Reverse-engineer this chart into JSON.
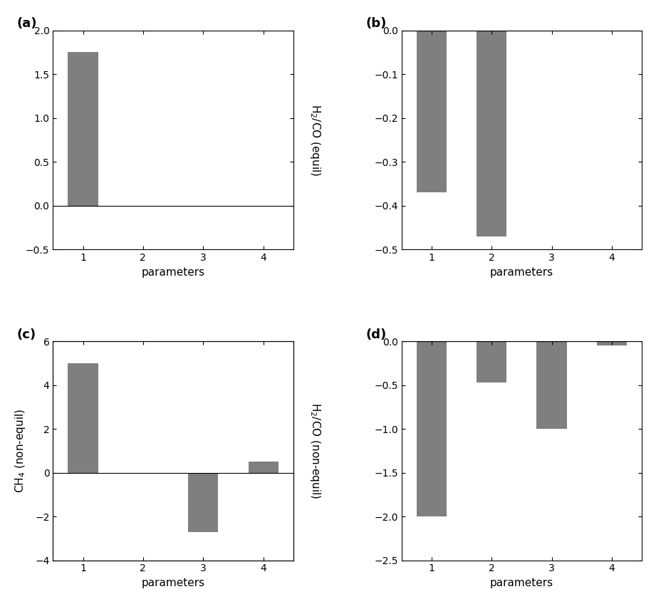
{
  "a": {
    "values": [
      1.75,
      0.0,
      0.0,
      0.0
    ],
    "ylim": [
      -0.5,
      2.0
    ],
    "yticks": [
      -0.5,
      0.0,
      0.5,
      1.0,
      1.5,
      2.0
    ],
    "ylabel_right": "H$_2$/CO (equil)",
    "label": "(a)"
  },
  "b": {
    "values": [
      -0.37,
      -0.47,
      0.0,
      0.0
    ],
    "ylim": [
      -0.5,
      0.0
    ],
    "yticks": [
      -0.5,
      -0.4,
      -0.3,
      -0.2,
      -0.1,
      0.0
    ],
    "ylabel_right": "",
    "label": "(b)"
  },
  "c": {
    "values": [
      5.0,
      0.0,
      -2.7,
      0.5
    ],
    "ylim": [
      -4.0,
      6.0
    ],
    "yticks": [
      -4,
      -2,
      0,
      2,
      4,
      6
    ],
    "ylabel_left": "CH$_4$ (non-equil)",
    "ylabel_right": "H$_2$/CO (non-equil)",
    "label": "(c)"
  },
  "d": {
    "values": [
      -2.0,
      -0.47,
      -1.0,
      -0.05
    ],
    "ylim": [
      -2.5,
      0.0
    ],
    "yticks": [
      -2.5,
      -2.0,
      -1.5,
      -1.0,
      -0.5,
      0.0
    ],
    "ylabel_right": "",
    "label": "(d)"
  },
  "bar_color": "#7f7f7f",
  "bar_width": 0.5,
  "xlabel": "parameters",
  "xticks": [
    1,
    2,
    3,
    4
  ],
  "fig_width": 9.29,
  "fig_height": 8.55
}
